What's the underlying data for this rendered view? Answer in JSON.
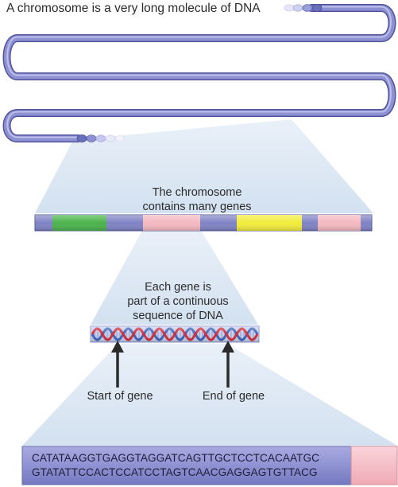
{
  "title": "A chromosome is a very long molecule of DNA",
  "chromosome_label": [
    "The chromosome",
    "contains many genes"
  ],
  "gene_label": [
    "Each gene is",
    "part of a continuous",
    "sequence of DNA"
  ],
  "start_label": "Start of gene",
  "end_label": "End of gene",
  "dna_sequence": {
    "line1_main": "CATATAAGGTGAGGTAGGATCAGTTGCTCCTCACA",
    "line1_end": "ATGC",
    "line2_main": "GTATATTCCACTCCATCCTAGTCAACGAGGAGTGT",
    "line2_end": "TACG"
  },
  "colors": {
    "strand": "#8a8fd0",
    "strand_dark": "#5a5fa8",
    "zoom_fill": "#dde8f4",
    "gene_green": "#4bb34b",
    "gene_pink": "#f4b8c0",
    "gene_yellow": "#f2ec3a",
    "gene_blue": "#8083c4",
    "highlight_pink": "#f5c0c8"
  }
}
